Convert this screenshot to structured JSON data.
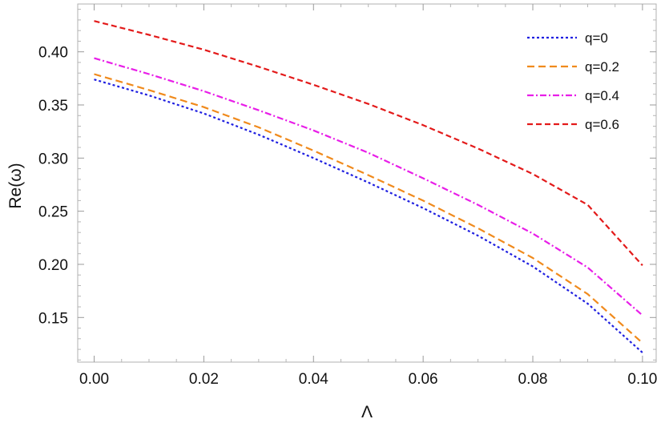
{
  "chart_data": {
    "type": "line",
    "xlabel": "Λ",
    "ylabel": "Re(ω)",
    "xlim": [
      -0.003,
      0.1025
    ],
    "ylim": [
      0.108,
      0.445
    ],
    "x_ticks": [
      0.0,
      0.02,
      0.04,
      0.06,
      0.08,
      0.1
    ],
    "x_tick_labels": [
      "0.00",
      "0.02",
      "0.04",
      "0.06",
      "0.08",
      "0.10"
    ],
    "y_ticks": [
      0.15,
      0.2,
      0.25,
      0.3,
      0.35,
      0.4
    ],
    "y_tick_labels": [
      "0.15",
      "0.20",
      "0.25",
      "0.30",
      "0.35",
      "0.40"
    ],
    "legend_position": "top-right",
    "x": [
      0.0,
      0.01,
      0.02,
      0.03,
      0.04,
      0.05,
      0.06,
      0.07,
      0.08,
      0.09,
      0.1
    ],
    "series": [
      {
        "name": "q=0",
        "color": "#1f1fe0",
        "dash": "3,3",
        "values": [
          0.374,
          0.359,
          0.342,
          0.322,
          0.3,
          0.277,
          0.253,
          0.227,
          0.198,
          0.163,
          0.117
        ]
      },
      {
        "name": "q=0.2",
        "color": "#f08a1c",
        "dash": "9,5",
        "values": [
          0.379,
          0.364,
          0.348,
          0.329,
          0.307,
          0.284,
          0.26,
          0.234,
          0.206,
          0.172,
          0.126
        ]
      },
      {
        "name": "q=0.4",
        "color": "#e81ee8",
        "dash": "8,3,2,3",
        "values": [
          0.394,
          0.379,
          0.363,
          0.345,
          0.326,
          0.305,
          0.281,
          0.256,
          0.229,
          0.197,
          0.152
        ]
      },
      {
        "name": "q=0.6",
        "color": "#e31a1a",
        "dash": "7,4",
        "values": [
          0.429,
          0.416,
          0.402,
          0.386,
          0.369,
          0.351,
          0.331,
          0.309,
          0.285,
          0.256,
          0.199
        ]
      }
    ]
  }
}
